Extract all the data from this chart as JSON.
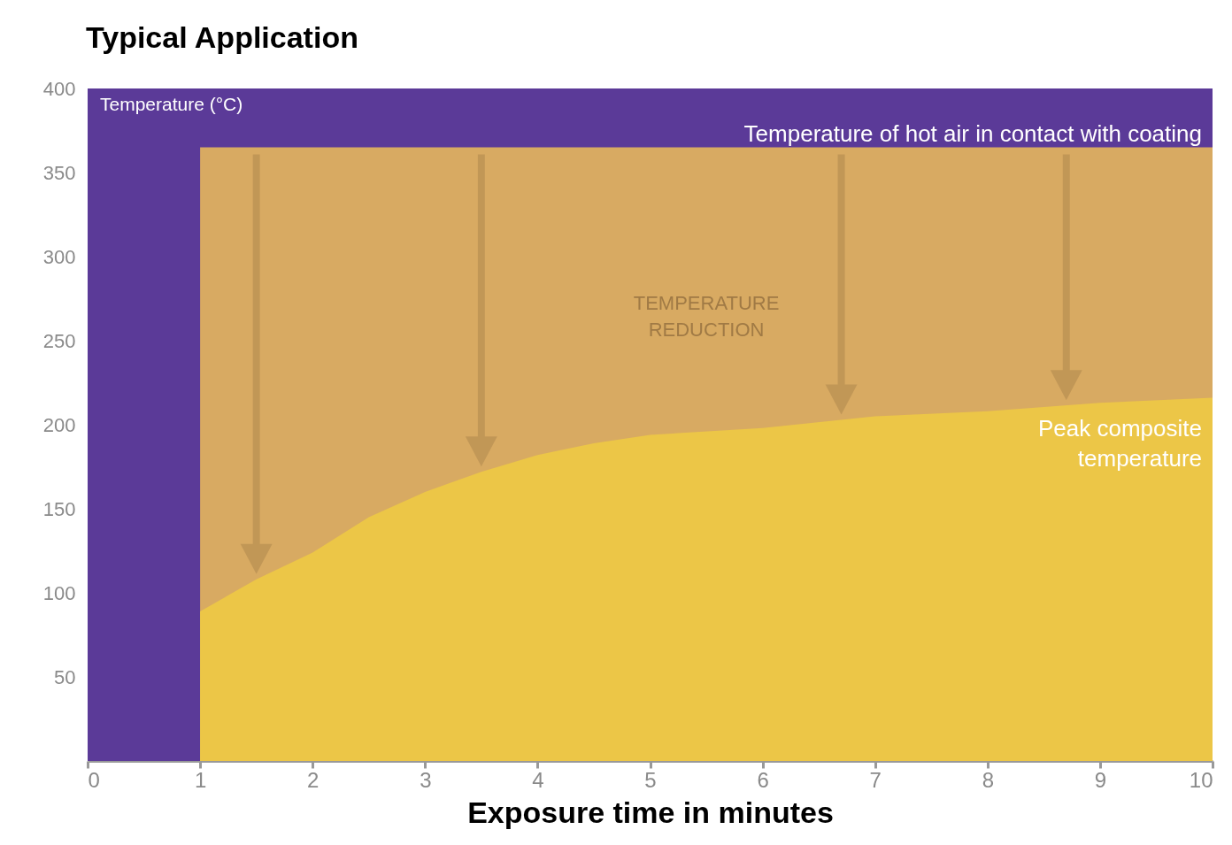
{
  "chart_data": {
    "type": "area",
    "title": "Typical Application",
    "xlabel": "Exposure time in minutes",
    "ylabel": "Temperature (°C)",
    "xlim": [
      0,
      10
    ],
    "xticks": [
      0,
      1,
      2,
      3,
      4,
      5,
      6,
      7,
      8,
      9,
      10
    ],
    "ylim": [
      0,
      400
    ],
    "yticks": [
      50,
      100,
      150,
      200,
      250,
      300,
      350,
      400
    ],
    "series": [
      {
        "name": "Temperature of hot air in contact with coating",
        "color": "#d8aa62",
        "x": [
          1,
          10
        ],
        "values": [
          365,
          365
        ]
      },
      {
        "name": "Peak composite temperature",
        "color": "#ecc647",
        "x": [
          1,
          1.5,
          2,
          2.5,
          3,
          3.5,
          4,
          4.5,
          5,
          6,
          7,
          8,
          9,
          10
        ],
        "values": [
          89,
          108,
          124,
          145,
          160,
          172,
          182,
          189,
          194,
          198,
          205,
          208,
          213,
          216
        ]
      }
    ],
    "bands": [
      {
        "axis": "x",
        "from": 0,
        "to": 10,
        "color": "#5b3a98"
      }
    ],
    "annotations": [
      "TEMPERATURE REDUCTION"
    ],
    "grid": false
  }
}
